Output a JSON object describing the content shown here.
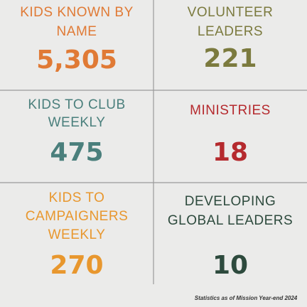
{
  "stats": [
    {
      "label_lines": [
        "KIDS KNOWN BY",
        "NAME"
      ],
      "value": "5,305"
    },
    {
      "label_lines": [
        "VOLUNTEER",
        "LEADERS"
      ],
      "value": "221"
    },
    {
      "label_lines": [
        "KIDS TO CLUB",
        "WEEKLY"
      ],
      "value": "475"
    },
    {
      "label_lines": [
        "MINISTRIES"
      ],
      "value": "18"
    },
    {
      "label_lines": [
        "KIDS TO",
        "CAMPAIGNERS",
        "WEEKLY"
      ],
      "value": "270"
    },
    {
      "label_lines": [
        "DEVELOPING",
        "GLOBAL LEADERS"
      ],
      "value": "10"
    }
  ],
  "footnote": "Statistics as of Mission Year-end 2024"
}
